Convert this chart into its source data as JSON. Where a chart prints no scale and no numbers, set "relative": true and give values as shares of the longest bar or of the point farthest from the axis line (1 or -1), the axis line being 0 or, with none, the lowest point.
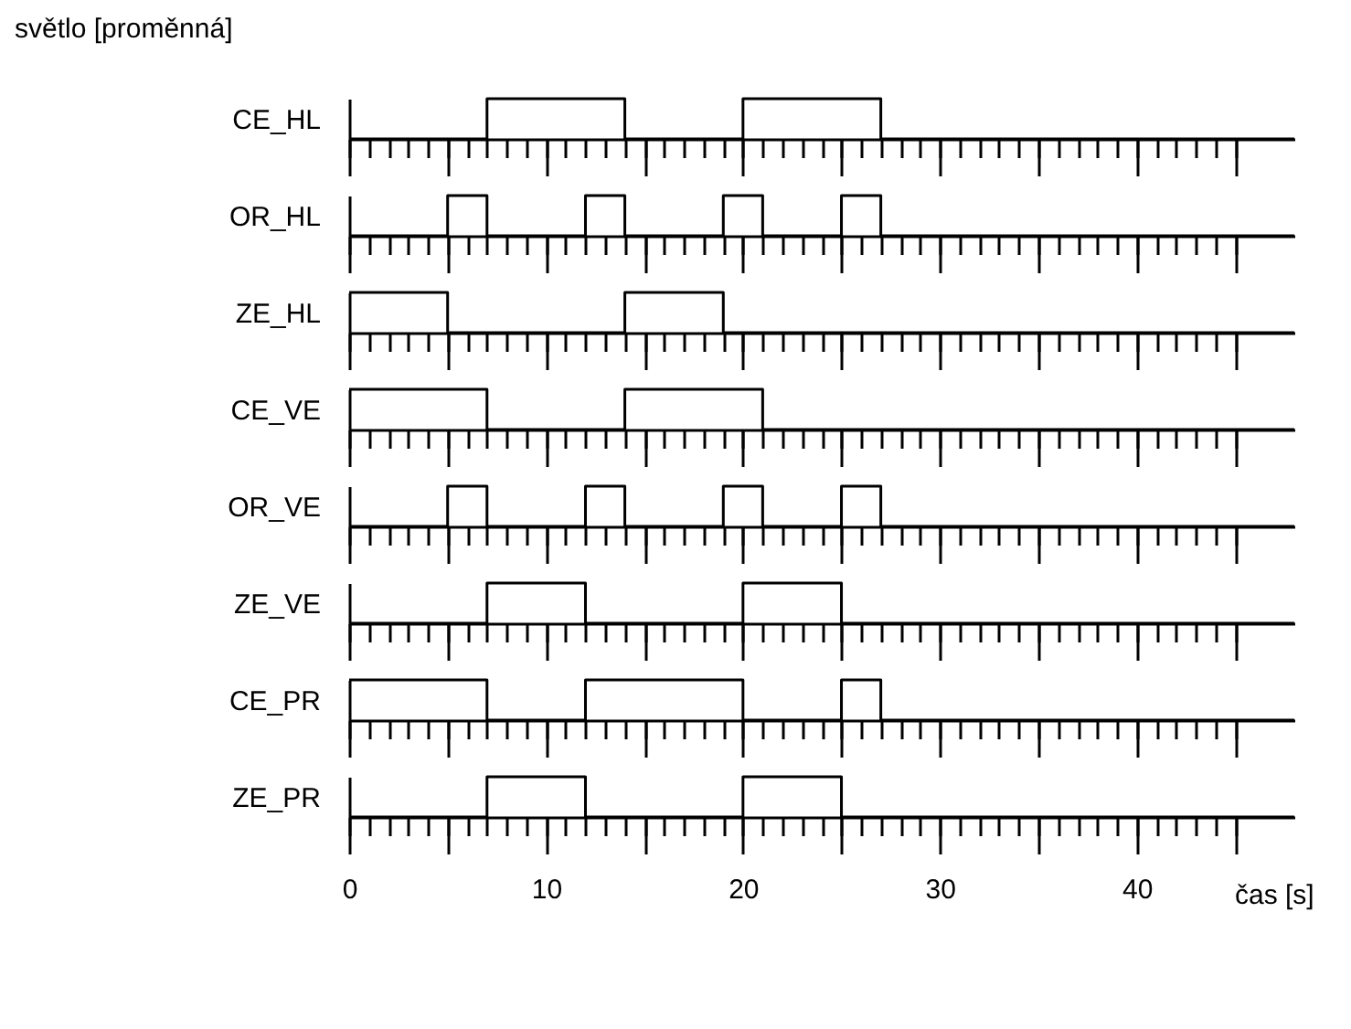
{
  "chart_data": [
    {
      "type": "step",
      "title": "světlo [proměnná]",
      "ylabel": "CE_HL",
      "relative": true,
      "tick_labels": false,
      "xlim": [
        0,
        48
      ],
      "xticks": [
        0,
        {
          "value": 1,
          "label": null
        },
        {
          "value": 2,
          "label": null
        },
        {
          "value": 3,
          "label": null
        },
        {
          "value": 4,
          "label": null
        },
        {
          "value": 5,
          "label": null
        },
        {
          "value": 6,
          "label": null
        },
        {
          "value": 7,
          "label": null
        },
        {
          "value": 8,
          "label": null
        },
        {
          "value": 9,
          "label": null
        },
        10,
        {
          "value": 11,
          "label": null
        },
        {
          "value": 12,
          "label": null
        },
        {
          "value": 13,
          "label": null
        },
        {
          "value": 14,
          "label": null
        },
        {
          "value": 15,
          "label": null
        },
        {
          "value": 16,
          "label": null
        },
        {
          "value": 17,
          "label": null
        },
        {
          "value": 18,
          "label": null
        },
        {
          "value": 19,
          "label": null
        },
        20,
        {
          "value": 21,
          "label": null
        },
        {
          "value": 22,
          "label": null
        },
        {
          "value": 23,
          "label": null
        },
        {
          "value": 24,
          "label": null
        },
        {
          "value": 25,
          "label": null
        },
        {
          "value": 26,
          "label": null
        },
        {
          "value": 27,
          "label": null
        },
        {
          "value": 28,
          "label": null
        },
        {
          "value": 29,
          "label": null
        },
        30,
        {
          "value": 31,
          "label": null
        },
        {
          "value": 32,
          "label": null
        },
        {
          "value": 33,
          "label": null
        },
        {
          "value": 34,
          "label": null
        },
        {
          "value": 35,
          "label": null
        },
        {
          "value": 36,
          "label": null
        },
        {
          "value": 37,
          "label": null
        },
        {
          "value": 38,
          "label": null
        },
        {
          "value": 39,
          "label": null
        },
        40,
        {
          "value": 41,
          "label": null
        },
        {
          "value": 42,
          "label": null
        },
        {
          "value": 43,
          "label": null
        },
        {
          "value": 44,
          "label": null
        },
        {
          "value": 45,
          "label": null
        }
      ],
      "series": [
        {
          "color": "#000000",
          "x": [
            0,
            7,
            14,
            20,
            27,
            48
          ],
          "values": [
            0,
            1,
            0,
            1,
            0,
            0
          ]
        }
      ]
    },
    {
      "type": "step",
      "ylabel": "OR_HL",
      "relative": true,
      "tick_labels": false,
      "xlim": [
        0,
        48
      ],
      "xticks": [
        0,
        {
          "value": 1,
          "label": null
        },
        {
          "value": 2,
          "label": null
        },
        {
          "value": 3,
          "label": null
        },
        {
          "value": 4,
          "label": null
        },
        {
          "value": 5,
          "label": null
        },
        {
          "value": 6,
          "label": null
        },
        {
          "value": 7,
          "label": null
        },
        {
          "value": 8,
          "label": null
        },
        {
          "value": 9,
          "label": null
        },
        10,
        {
          "value": 11,
          "label": null
        },
        {
          "value": 12,
          "label": null
        },
        {
          "value": 13,
          "label": null
        },
        {
          "value": 14,
          "label": null
        },
        {
          "value": 15,
          "label": null
        },
        {
          "value": 16,
          "label": null
        },
        {
          "value": 17,
          "label": null
        },
        {
          "value": 18,
          "label": null
        },
        {
          "value": 19,
          "label": null
        },
        20,
        {
          "value": 21,
          "label": null
        },
        {
          "value": 22,
          "label": null
        },
        {
          "value": 23,
          "label": null
        },
        {
          "value": 24,
          "label": null
        },
        {
          "value": 25,
          "label": null
        },
        {
          "value": 26,
          "label": null
        },
        {
          "value": 27,
          "label": null
        },
        {
          "value": 28,
          "label": null
        },
        {
          "value": 29,
          "label": null
        },
        30,
        {
          "value": 31,
          "label": null
        },
        {
          "value": 32,
          "label": null
        },
        {
          "value": 33,
          "label": null
        },
        {
          "value": 34,
          "label": null
        },
        {
          "value": 35,
          "label": null
        },
        {
          "value": 36,
          "label": null
        },
        {
          "value": 37,
          "label": null
        },
        {
          "value": 38,
          "label": null
        },
        {
          "value": 39,
          "label": null
        },
        40,
        {
          "value": 41,
          "label": null
        },
        {
          "value": 42,
          "label": null
        },
        {
          "value": 43,
          "label": null
        },
        {
          "value": 44,
          "label": null
        },
        {
          "value": 45,
          "label": null
        }
      ],
      "series": [
        {
          "color": "#000000",
          "x": [
            0,
            5,
            7,
            12,
            14,
            19,
            21,
            25,
            27,
            48
          ],
          "values": [
            0,
            1,
            0,
            1,
            0,
            1,
            0,
            1,
            0,
            0
          ]
        }
      ]
    },
    {
      "type": "step",
      "ylabel": "ZE_HL",
      "relative": true,
      "tick_labels": false,
      "xlim": [
        0,
        48
      ],
      "xticks": [
        0,
        {
          "value": 1,
          "label": null
        },
        {
          "value": 2,
          "label": null
        },
        {
          "value": 3,
          "label": null
        },
        {
          "value": 4,
          "label": null
        },
        {
          "value": 5,
          "label": null
        },
        {
          "value": 6,
          "label": null
        },
        {
          "value": 7,
          "label": null
        },
        {
          "value": 8,
          "label": null
        },
        {
          "value": 9,
          "label": null
        },
        10,
        {
          "value": 11,
          "label": null
        },
        {
          "value": 12,
          "label": null
        },
        {
          "value": 13,
          "label": null
        },
        {
          "value": 14,
          "label": null
        },
        {
          "value": 15,
          "label": null
        },
        {
          "value": 16,
          "label": null
        },
        {
          "value": 17,
          "label": null
        },
        {
          "value": 18,
          "label": null
        },
        {
          "value": 19,
          "label": null
        },
        20,
        {
          "value": 21,
          "label": null
        },
        {
          "value": 22,
          "label": null
        },
        {
          "value": 23,
          "label": null
        },
        {
          "value": 24,
          "label": null
        },
        {
          "value": 25,
          "label": null
        },
        {
          "value": 26,
          "label": null
        },
        {
          "value": 27,
          "label": null
        },
        {
          "value": 28,
          "label": null
        },
        {
          "value": 29,
          "label": null
        },
        30,
        {
          "value": 31,
          "label": null
        },
        {
          "value": 32,
          "label": null
        },
        {
          "value": 33,
          "label": null
        },
        {
          "value": 34,
          "label": null
        },
        {
          "value": 35,
          "label": null
        },
        {
          "value": 36,
          "label": null
        },
        {
          "value": 37,
          "label": null
        },
        {
          "value": 38,
          "label": null
        },
        {
          "value": 39,
          "label": null
        },
        40,
        {
          "value": 41,
          "label": null
        },
        {
          "value": 42,
          "label": null
        },
        {
          "value": 43,
          "label": null
        },
        {
          "value": 44,
          "label": null
        },
        {
          "value": 45,
          "label": null
        }
      ],
      "series": [
        {
          "color": "#000000",
          "x": [
            0,
            5,
            14,
            19,
            48
          ],
          "values": [
            1,
            0,
            1,
            0,
            0
          ]
        }
      ]
    },
    {
      "type": "step",
      "ylabel": "CE_VE",
      "relative": true,
      "tick_labels": false,
      "xlim": [
        0,
        48
      ],
      "xticks": [
        0,
        {
          "value": 1,
          "label": null
        },
        {
          "value": 2,
          "label": null
        },
        {
          "value": 3,
          "label": null
        },
        {
          "value": 4,
          "label": null
        },
        {
          "value": 5,
          "label": null
        },
        {
          "value": 6,
          "label": null
        },
        {
          "value": 7,
          "label": null
        },
        {
          "value": 8,
          "label": null
        },
        {
          "value": 9,
          "label": null
        },
        10,
        {
          "value": 11,
          "label": null
        },
        {
          "value": 12,
          "label": null
        },
        {
          "value": 13,
          "label": null
        },
        {
          "value": 14,
          "label": null
        },
        {
          "value": 15,
          "label": null
        },
        {
          "value": 16,
          "label": null
        },
        {
          "value": 17,
          "label": null
        },
        {
          "value": 18,
          "label": null
        },
        {
          "value": 19,
          "label": null
        },
        20,
        {
          "value": 21,
          "label": null
        },
        {
          "value": 22,
          "label": null
        },
        {
          "value": 23,
          "label": null
        },
        {
          "value": 24,
          "label": null
        },
        {
          "value": 25,
          "label": null
        },
        {
          "value": 26,
          "label": null
        },
        {
          "value": 27,
          "label": null
        },
        {
          "value": 28,
          "label": null
        },
        {
          "value": 29,
          "label": null
        },
        30,
        {
          "value": 31,
          "label": null
        },
        {
          "value": 32,
          "label": null
        },
        {
          "value": 33,
          "label": null
        },
        {
          "value": 34,
          "label": null
        },
        {
          "value": 35,
          "label": null
        },
        {
          "value": 36,
          "label": null
        },
        {
          "value": 37,
          "label": null
        },
        {
          "value": 38,
          "label": null
        },
        {
          "value": 39,
          "label": null
        },
        40,
        {
          "value": 41,
          "label": null
        },
        {
          "value": 42,
          "label": null
        },
        {
          "value": 43,
          "label": null
        },
        {
          "value": 44,
          "label": null
        },
        {
          "value": 45,
          "label": null
        }
      ],
      "series": [
        {
          "color": "#000000",
          "x": [
            0,
            7,
            14,
            21,
            48
          ],
          "values": [
            1,
            0,
            1,
            0,
            0
          ]
        }
      ]
    },
    {
      "type": "step",
      "ylabel": "OR_VE",
      "relative": true,
      "tick_labels": false,
      "xlim": [
        0,
        48
      ],
      "xticks": [
        0,
        {
          "value": 1,
          "label": null
        },
        {
          "value": 2,
          "label": null
        },
        {
          "value": 3,
          "label": null
        },
        {
          "value": 4,
          "label": null
        },
        {
          "value": 5,
          "label": null
        },
        {
          "value": 6,
          "label": null
        },
        {
          "value": 7,
          "label": null
        },
        {
          "value": 8,
          "label": null
        },
        {
          "value": 9,
          "label": null
        },
        10,
        {
          "value": 11,
          "label": null
        },
        {
          "value": 12,
          "label": null
        },
        {
          "value": 13,
          "label": null
        },
        {
          "value": 14,
          "label": null
        },
        {
          "value": 15,
          "label": null
        },
        {
          "value": 16,
          "label": null
        },
        {
          "value": 17,
          "label": null
        },
        {
          "value": 18,
          "label": null
        },
        {
          "value": 19,
          "label": null
        },
        20,
        {
          "value": 21,
          "label": null
        },
        {
          "value": 22,
          "label": null
        },
        {
          "value": 23,
          "label": null
        },
        {
          "value": 24,
          "label": null
        },
        {
          "value": 25,
          "label": null
        },
        {
          "value": 26,
          "label": null
        },
        {
          "value": 27,
          "label": null
        },
        {
          "value": 28,
          "label": null
        },
        {
          "value": 29,
          "label": null
        },
        30,
        {
          "value": 31,
          "label": null
        },
        {
          "value": 32,
          "label": null
        },
        {
          "value": 33,
          "label": null
        },
        {
          "value": 34,
          "label": null
        },
        {
          "value": 35,
          "label": null
        },
        {
          "value": 36,
          "label": null
        },
        {
          "value": 37,
          "label": null
        },
        {
          "value": 38,
          "label": null
        },
        {
          "value": 39,
          "label": null
        },
        40,
        {
          "value": 41,
          "label": null
        },
        {
          "value": 42,
          "label": null
        },
        {
          "value": 43,
          "label": null
        },
        {
          "value": 44,
          "label": null
        },
        {
          "value": 45,
          "label": null
        }
      ],
      "series": [
        {
          "color": "#000000",
          "x": [
            0,
            5,
            7,
            12,
            14,
            19,
            21,
            25,
            27,
            48
          ],
          "values": [
            0,
            1,
            0,
            1,
            0,
            1,
            0,
            1,
            0,
            0
          ]
        }
      ]
    },
    {
      "type": "step",
      "ylabel": "ZE_VE",
      "relative": true,
      "tick_labels": false,
      "xlim": [
        0,
        48
      ],
      "xticks": [
        0,
        {
          "value": 1,
          "label": null
        },
        {
          "value": 2,
          "label": null
        },
        {
          "value": 3,
          "label": null
        },
        {
          "value": 4,
          "label": null
        },
        {
          "value": 5,
          "label": null
        },
        {
          "value": 6,
          "label": null
        },
        {
          "value": 7,
          "label": null
        },
        {
          "value": 8,
          "label": null
        },
        {
          "value": 9,
          "label": null
        },
        10,
        {
          "value": 11,
          "label": null
        },
        {
          "value": 12,
          "label": null
        },
        {
          "value": 13,
          "label": null
        },
        {
          "value": 14,
          "label": null
        },
        {
          "value": 15,
          "label": null
        },
        {
          "value": 16,
          "label": null
        },
        {
          "value": 17,
          "label": null
        },
        {
          "value": 18,
          "label": null
        },
        {
          "value": 19,
          "label": null
        },
        20,
        {
          "value": 21,
          "label": null
        },
        {
          "value": 22,
          "label": null
        },
        {
          "value": 23,
          "label": null
        },
        {
          "value": 24,
          "label": null
        },
        {
          "value": 25,
          "label": null
        },
        {
          "value": 26,
          "label": null
        },
        {
          "value": 27,
          "label": null
        },
        {
          "value": 28,
          "label": null
        },
        {
          "value": 29,
          "label": null
        },
        30,
        {
          "value": 31,
          "label": null
        },
        {
          "value": 32,
          "label": null
        },
        {
          "value": 33,
          "label": null
        },
        {
          "value": 34,
          "label": null
        },
        {
          "value": 35,
          "label": null
        },
        {
          "value": 36,
          "label": null
        },
        {
          "value": 37,
          "label": null
        },
        {
          "value": 38,
          "label": null
        },
        {
          "value": 39,
          "label": null
        },
        40,
        {
          "value": 41,
          "label": null
        },
        {
          "value": 42,
          "label": null
        },
        {
          "value": 43,
          "label": null
        },
        {
          "value": 44,
          "label": null
        },
        {
          "value": 45,
          "label": null
        }
      ],
      "series": [
        {
          "color": "#000000",
          "x": [
            0,
            7,
            12,
            20,
            25,
            48
          ],
          "values": [
            0,
            1,
            0,
            1,
            0,
            0
          ]
        }
      ]
    },
    {
      "type": "step",
      "ylabel": "CE_PR",
      "relative": true,
      "tick_labels": false,
      "xlim": [
        0,
        48
      ],
      "xticks": [
        0,
        {
          "value": 1,
          "label": null
        },
        {
          "value": 2,
          "label": null
        },
        {
          "value": 3,
          "label": null
        },
        {
          "value": 4,
          "label": null
        },
        {
          "value": 5,
          "label": null
        },
        {
          "value": 6,
          "label": null
        },
        {
          "value": 7,
          "label": null
        },
        {
          "value": 8,
          "label": null
        },
        {
          "value": 9,
          "label": null
        },
        10,
        {
          "value": 11,
          "label": null
        },
        {
          "value": 12,
          "label": null
        },
        {
          "value": 13,
          "label": null
        },
        {
          "value": 14,
          "label": null
        },
        {
          "value": 15,
          "label": null
        },
        {
          "value": 16,
          "label": null
        },
        {
          "value": 17,
          "label": null
        },
        {
          "value": 18,
          "label": null
        },
        {
          "value": 19,
          "label": null
        },
        20,
        {
          "value": 21,
          "label": null
        },
        {
          "value": 22,
          "label": null
        },
        {
          "value": 23,
          "label": null
        },
        {
          "value": 24,
          "label": null
        },
        {
          "value": 25,
          "label": null
        },
        {
          "value": 26,
          "label": null
        },
        {
          "value": 27,
          "label": null
        },
        {
          "value": 28,
          "label": null
        },
        {
          "value": 29,
          "label": null
        },
        30,
        {
          "value": 31,
          "label": null
        },
        {
          "value": 32,
          "label": null
        },
        {
          "value": 33,
          "label": null
        },
        {
          "value": 34,
          "label": null
        },
        {
          "value": 35,
          "label": null
        },
        {
          "value": 36,
          "label": null
        },
        {
          "value": 37,
          "label": null
        },
        {
          "value": 38,
          "label": null
        },
        {
          "value": 39,
          "label": null
        },
        40,
        {
          "value": 41,
          "label": null
        },
        {
          "value": 42,
          "label": null
        },
        {
          "value": 43,
          "label": null
        },
        {
          "value": 44,
          "label": null
        },
        {
          "value": 45,
          "label": null
        }
      ],
      "series": [
        {
          "color": "#000000",
          "x": [
            0,
            7,
            12,
            20,
            25,
            27,
            48
          ],
          "values": [
            1,
            0,
            1,
            0,
            1,
            0,
            0
          ]
        }
      ]
    },
    {
      "type": "step",
      "ylabel": "ZE_PR",
      "xlabel": "čas [s]",
      "relative": true,
      "tick_labels": "x",
      "xlim": [
        0,
        48
      ],
      "xticks": [
        0,
        {
          "value": 1,
          "label": null
        },
        {
          "value": 2,
          "label": null
        },
        {
          "value": 3,
          "label": null
        },
        {
          "value": 4,
          "label": null
        },
        {
          "value": 5,
          "label": null
        },
        {
          "value": 6,
          "label": null
        },
        {
          "value": 7,
          "label": null
        },
        {
          "value": 8,
          "label": null
        },
        {
          "value": 9,
          "label": null
        },
        10,
        {
          "value": 11,
          "label": null
        },
        {
          "value": 12,
          "label": null
        },
        {
          "value": 13,
          "label": null
        },
        {
          "value": 14,
          "label": null
        },
        {
          "value": 15,
          "label": null
        },
        {
          "value": 16,
          "label": null
        },
        {
          "value": 17,
          "label": null
        },
        {
          "value": 18,
          "label": null
        },
        {
          "value": 19,
          "label": null
        },
        20,
        {
          "value": 21,
          "label": null
        },
        {
          "value": 22,
          "label": null
        },
        {
          "value": 23,
          "label": null
        },
        {
          "value": 24,
          "label": null
        },
        {
          "value": 25,
          "label": null
        },
        {
          "value": 26,
          "label": null
        },
        {
          "value": 27,
          "label": null
        },
        {
          "value": 28,
          "label": null
        },
        {
          "value": 29,
          "label": null
        },
        30,
        {
          "value": 31,
          "label": null
        },
        {
          "value": 32,
          "label": null
        },
        {
          "value": 33,
          "label": null
        },
        {
          "value": 34,
          "label": null
        },
        {
          "value": 35,
          "label": null
        },
        {
          "value": 36,
          "label": null
        },
        {
          "value": 37,
          "label": null
        },
        {
          "value": 38,
          "label": null
        },
        {
          "value": 39,
          "label": null
        },
        40,
        {
          "value": 41,
          "label": null
        },
        {
          "value": 42,
          "label": null
        },
        {
          "value": 43,
          "label": null
        },
        {
          "value": 44,
          "label": null
        },
        {
          "value": 45,
          "label": null
        }
      ],
      "series": [
        {
          "color": "#000000",
          "x": [
            0,
            7,
            12,
            20,
            25,
            48
          ],
          "values": [
            0,
            1,
            0,
            1,
            0,
            0
          ]
        }
      ]
    }
  ]
}
